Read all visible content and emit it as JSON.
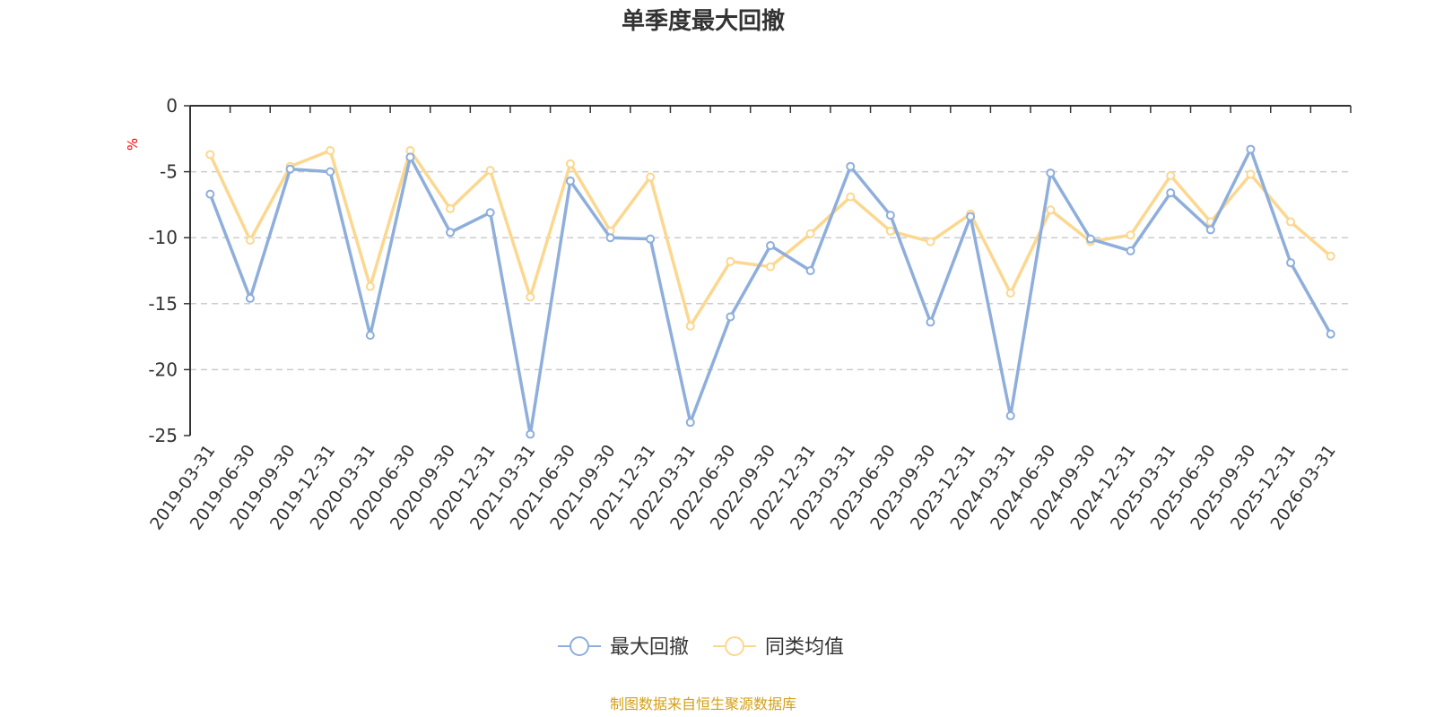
{
  "chart_data": {
    "type": "line",
    "title": "单季度最大回撤",
    "ylabel": "%",
    "ylim": [
      -25,
      0
    ],
    "yticks": [
      0,
      -5,
      -10,
      -15,
      -20,
      -25
    ],
    "grid": true,
    "legend_position": "bottom",
    "categories": [
      "2019-03-31",
      "2019-06-30",
      "2019-09-30",
      "2019-12-31",
      "2020-03-31",
      "2020-06-30",
      "2020-09-30",
      "2020-12-31",
      "2021-03-31",
      "2021-06-30",
      "2021-09-30",
      "2021-12-31",
      "2022-03-31",
      "2022-06-30",
      "2022-09-30",
      "2022-12-31",
      "2023-03-31",
      "2023-06-30",
      "2023-09-30",
      "2023-12-31",
      "2024-03-31",
      "2024-06-30",
      "2024-09-30",
      "2024-12-31",
      "2025-03-31",
      "2025-06-30",
      "2025-09-30",
      "2025-12-31",
      "2026-03-31"
    ],
    "series": [
      {
        "name": "最大回撤",
        "color": "#8eaedb",
        "values": [
          -6.7,
          -14.6,
          -4.8,
          -5.0,
          -17.4,
          -3.9,
          -9.6,
          -8.1,
          -24.9,
          -5.7,
          -10.0,
          -10.1,
          -24.0,
          -16.0,
          -10.6,
          -12.5,
          -4.6,
          -8.3,
          -16.4,
          -8.4,
          -23.5,
          -5.1,
          -10.1,
          -11.0,
          -6.6,
          -9.4,
          -3.3,
          -11.9,
          -17.3
        ]
      },
      {
        "name": "同类均值",
        "color": "#fcd78f",
        "values": [
          -3.7,
          -10.2,
          -4.6,
          -3.4,
          -13.7,
          -3.4,
          -7.8,
          -4.9,
          -14.5,
          -4.4,
          -9.5,
          -5.4,
          -16.7,
          -11.8,
          -12.2,
          -9.7,
          -6.9,
          -9.5,
          -10.3,
          -8.2,
          -14.2,
          -7.9,
          -10.3,
          -9.8,
          -5.3,
          -8.8,
          -5.2,
          -8.8,
          -11.4
        ]
      }
    ]
  },
  "footer": {
    "source": "制图数据来自恒生聚源数据库"
  }
}
